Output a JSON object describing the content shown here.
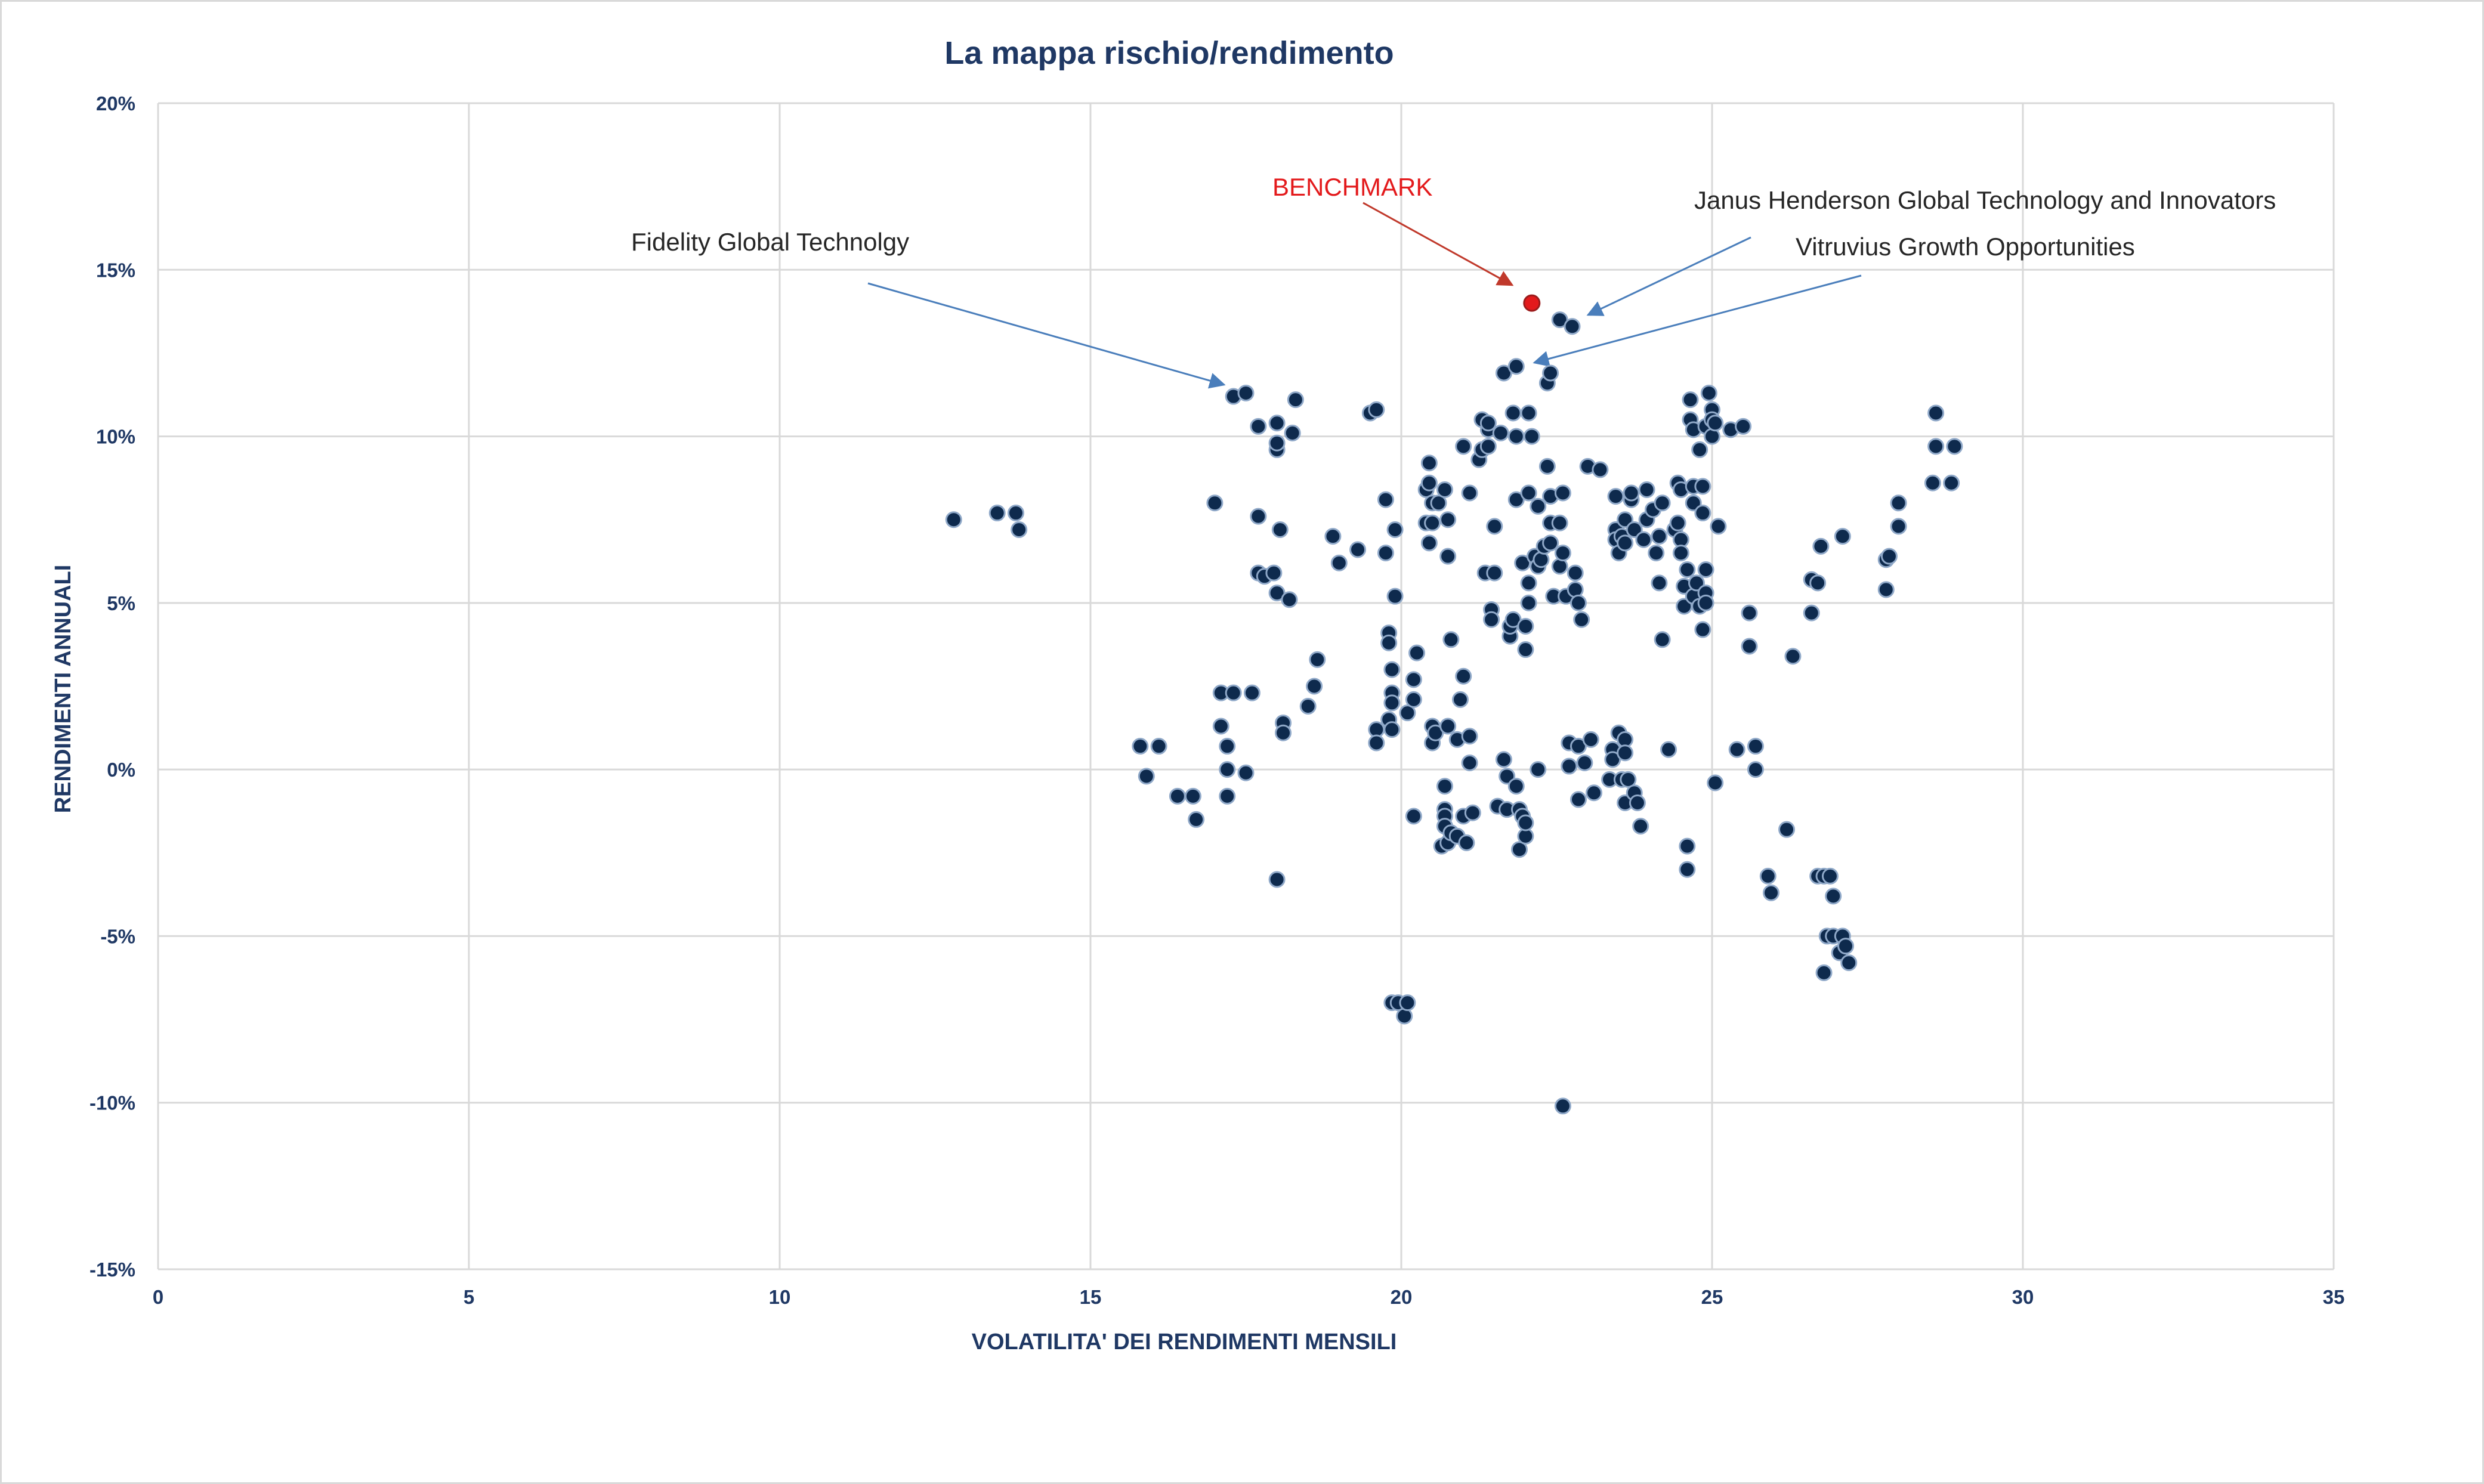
{
  "chart_data": {
    "type": "scatter",
    "title": "La mappa rischio/rendimento",
    "xlabel": "VOLATILITA' DEI RENDIMENTI MENSILI",
    "ylabel": "RENDIMENTI ANNUALI",
    "xlim": [
      0,
      35
    ],
    "ylim": [
      -15,
      20
    ],
    "x_ticks": [
      0,
      5,
      10,
      15,
      20,
      25,
      30,
      35
    ],
    "y_ticks": [
      20,
      15,
      10,
      5,
      0,
      -5,
      -10,
      -15
    ],
    "x_tick_labels": [
      "0",
      "5",
      "10",
      "15",
      "20",
      "25",
      "30",
      "35"
    ],
    "y_tick_labels": [
      "20%",
      "15%",
      "10%",
      "5%",
      "0%",
      "-5%",
      "-10%",
      "-15%"
    ],
    "grid": true,
    "legend": "none",
    "colors": {
      "fund": "#0e2a4d",
      "fund_edge": "#8fa8c8",
      "benchmark": "#e31a1c",
      "arrow_blue": "#4a7ebb",
      "arrow_red": "#c0392b",
      "grid": "#d9d9d9"
    },
    "annotations": [
      {
        "text": "Fidelity Global Technolgy",
        "point": [
          17.5,
          11.3
        ]
      },
      {
        "text": "BENCHMARK",
        "point": [
          22.1,
          14.0
        ],
        "color": "#e31a1c"
      },
      {
        "text": "Janus Henderson Global Technology and Innovators",
        "point": [
          22.8,
          13.4
        ]
      },
      {
        "text": "Vitruvius Growth Opportunities",
        "point": [
          22.2,
          11.9
        ]
      }
    ],
    "series": [
      {
        "name": "BENCHMARK",
        "points": [
          [
            22.1,
            14.0
          ]
        ]
      },
      {
        "points": [
          [
            12.8,
            7.5
          ],
          [
            13.5,
            7.7
          ],
          [
            13.8,
            7.7
          ],
          [
            13.85,
            7.2
          ],
          [
            15.8,
            0.7
          ],
          [
            15.9,
            -0.2
          ],
          [
            16.1,
            0.7
          ],
          [
            16.4,
            -0.8
          ],
          [
            16.65,
            -0.8
          ],
          [
            16.7,
            -1.5
          ],
          [
            17.0,
            8.0
          ],
          [
            17.1,
            2.3
          ],
          [
            17.1,
            1.3
          ],
          [
            17.2,
            0.7
          ],
          [
            17.2,
            0.0
          ],
          [
            17.2,
            -0.8
          ],
          [
            17.3,
            2.3
          ],
          [
            17.3,
            11.2
          ],
          [
            17.5,
            11.3
          ],
          [
            17.5,
            -0.1
          ],
          [
            17.6,
            2.3
          ],
          [
            17.7,
            10.3
          ],
          [
            17.7,
            7.6
          ],
          [
            17.7,
            5.9
          ],
          [
            17.8,
            5.8
          ],
          [
            17.95,
            5.9
          ],
          [
            18.0,
            10.4
          ],
          [
            18.0,
            9.6
          ],
          [
            18.0,
            9.8
          ],
          [
            18.0,
            5.3
          ],
          [
            18.05,
            7.2
          ],
          [
            18.0,
            -3.3
          ],
          [
            18.1,
            1.4
          ],
          [
            18.1,
            1.1
          ],
          [
            18.2,
            5.1
          ],
          [
            18.25,
            10.1
          ],
          [
            18.3,
            11.1
          ],
          [
            18.5,
            1.9
          ],
          [
            18.6,
            2.5
          ],
          [
            18.65,
            3.3
          ],
          [
            18.9,
            7.0
          ],
          [
            19.0,
            6.2
          ],
          [
            19.3,
            6.6
          ],
          [
            19.5,
            10.7
          ],
          [
            19.6,
            10.8
          ],
          [
            19.6,
            1.2
          ],
          [
            19.6,
            0.8
          ],
          [
            19.75,
            8.1
          ],
          [
            19.75,
            6.5
          ],
          [
            19.8,
            4.1
          ],
          [
            19.8,
            3.8
          ],
          [
            19.85,
            3.0
          ],
          [
            19.85,
            2.3
          ],
          [
            19.85,
            2.0
          ],
          [
            19.8,
            1.5
          ],
          [
            19.85,
            1.2
          ],
          [
            19.9,
            7.2
          ],
          [
            19.9,
            5.2
          ],
          [
            19.85,
            -7.0
          ],
          [
            19.95,
            -7.0
          ],
          [
            20.05,
            -7.4
          ],
          [
            20.1,
            -7.0
          ],
          [
            20.1,
            1.7
          ],
          [
            20.2,
            2.7
          ],
          [
            20.2,
            2.1
          ],
          [
            20.25,
            3.5
          ],
          [
            20.2,
            -1.4
          ],
          [
            20.4,
            8.4
          ],
          [
            20.4,
            7.4
          ],
          [
            20.45,
            9.2
          ],
          [
            20.45,
            8.6
          ],
          [
            20.5,
            8.0
          ],
          [
            20.45,
            6.8
          ],
          [
            20.5,
            7.4
          ],
          [
            20.5,
            1.3
          ],
          [
            20.5,
            0.8
          ],
          [
            20.6,
            8.0
          ],
          [
            20.55,
            1.1
          ],
          [
            20.7,
            8.4
          ],
          [
            20.75,
            7.5
          ],
          [
            20.75,
            6.4
          ],
          [
            20.8,
            3.9
          ],
          [
            20.75,
            1.3
          ],
          [
            20.7,
            -0.5
          ],
          [
            20.7,
            -1.2
          ],
          [
            20.7,
            -1.4
          ],
          [
            20.7,
            -1.7
          ],
          [
            20.65,
            -2.3
          ],
          [
            20.75,
            -2.2
          ],
          [
            20.8,
            -1.9
          ],
          [
            20.9,
            0.9
          ],
          [
            20.9,
            -2.0
          ],
          [
            20.95,
            2.1
          ],
          [
            21.0,
            2.8
          ],
          [
            21.0,
            9.7
          ],
          [
            21.05,
            -2.2
          ],
          [
            21.0,
            -1.4
          ],
          [
            21.1,
            8.3
          ],
          [
            21.1,
            1.0
          ],
          [
            21.1,
            0.2
          ],
          [
            21.15,
            -1.3
          ],
          [
            21.25,
            9.3
          ],
          [
            21.3,
            10.5
          ],
          [
            21.3,
            9.6
          ],
          [
            21.35,
            5.9
          ],
          [
            21.4,
            10.2
          ],
          [
            21.4,
            9.7
          ],
          [
            21.4,
            10.4
          ],
          [
            21.45,
            4.8
          ],
          [
            21.45,
            4.5
          ],
          [
            21.5,
            7.3
          ],
          [
            21.5,
            5.9
          ],
          [
            21.55,
            -1.1
          ],
          [
            21.65,
            11.9
          ],
          [
            21.6,
            10.1
          ],
          [
            21.65,
            0.3
          ],
          [
            21.7,
            -0.2
          ],
          [
            21.7,
            -1.2
          ],
          [
            21.75,
            4.0
          ],
          [
            21.75,
            4.3
          ],
          [
            21.8,
            10.7
          ],
          [
            21.85,
            10.0
          ],
          [
            21.8,
            4.5
          ],
          [
            21.85,
            12.1
          ],
          [
            21.85,
            8.1
          ],
          [
            21.85,
            -0.5
          ],
          [
            21.9,
            -1.2
          ],
          [
            21.9,
            -2.4
          ],
          [
            21.95,
            6.2
          ],
          [
            21.95,
            -1.4
          ],
          [
            22.0,
            4.3
          ],
          [
            22.0,
            3.6
          ],
          [
            22.0,
            -2.0
          ],
          [
            22.0,
            -1.6
          ],
          [
            22.05,
            10.7
          ],
          [
            22.05,
            8.3
          ],
          [
            22.05,
            5.0
          ],
          [
            22.05,
            5.6
          ],
          [
            22.1,
            10.0
          ],
          [
            22.15,
            6.4
          ],
          [
            22.2,
            6.1
          ],
          [
            22.2,
            0.0
          ],
          [
            22.2,
            7.9
          ],
          [
            22.25,
            6.3
          ],
          [
            22.3,
            6.7
          ],
          [
            22.35,
            11.6
          ],
          [
            22.4,
            11.9
          ],
          [
            22.35,
            9.1
          ],
          [
            22.4,
            8.2
          ],
          [
            22.4,
            7.4
          ],
          [
            22.4,
            6.8
          ],
          [
            22.45,
            5.2
          ],
          [
            22.55,
            7.4
          ],
          [
            22.55,
            6.1
          ],
          [
            22.6,
            8.3
          ],
          [
            22.6,
            6.5
          ],
          [
            22.65,
            5.2
          ],
          [
            22.55,
            13.5
          ],
          [
            22.75,
            13.3
          ],
          [
            22.6,
            -10.1
          ],
          [
            22.7,
            0.8
          ],
          [
            22.7,
            0.1
          ],
          [
            22.8,
            5.9
          ],
          [
            22.8,
            5.4
          ],
          [
            22.85,
            5.0
          ],
          [
            22.85,
            0.7
          ],
          [
            22.85,
            -0.9
          ],
          [
            22.9,
            4.5
          ],
          [
            22.95,
            0.2
          ],
          [
            23.0,
            9.1
          ],
          [
            23.05,
            0.9
          ],
          [
            23.1,
            -0.7
          ],
          [
            23.2,
            9.0
          ],
          [
            23.35,
            -0.3
          ],
          [
            23.4,
            0.6
          ],
          [
            23.4,
            0.3
          ],
          [
            23.45,
            8.2
          ],
          [
            23.45,
            7.2
          ],
          [
            23.45,
            6.9
          ],
          [
            23.5,
            6.5
          ],
          [
            23.5,
            1.1
          ],
          [
            23.55,
            7.0
          ],
          [
            23.55,
            -0.3
          ],
          [
            23.6,
            7.5
          ],
          [
            23.6,
            6.8
          ],
          [
            23.6,
            0.9
          ],
          [
            23.6,
            0.5
          ],
          [
            23.6,
            -1.0
          ],
          [
            23.65,
            -0.3
          ],
          [
            23.7,
            8.1
          ],
          [
            23.7,
            8.3
          ],
          [
            23.75,
            7.2
          ],
          [
            23.75,
            -0.7
          ],
          [
            23.8,
            -1.0
          ],
          [
            23.85,
            -1.7
          ],
          [
            23.9,
            6.9
          ],
          [
            23.95,
            8.4
          ],
          [
            23.95,
            7.5
          ],
          [
            24.05,
            7.8
          ],
          [
            24.1,
            6.5
          ],
          [
            24.15,
            7.0
          ],
          [
            24.15,
            5.6
          ],
          [
            24.2,
            8.0
          ],
          [
            24.2,
            3.9
          ],
          [
            24.3,
            0.6
          ],
          [
            24.4,
            7.2
          ],
          [
            24.45,
            8.6
          ],
          [
            24.45,
            7.4
          ],
          [
            24.5,
            8.4
          ],
          [
            24.5,
            6.9
          ],
          [
            24.5,
            6.5
          ],
          [
            24.55,
            5.5
          ],
          [
            24.55,
            4.9
          ],
          [
            24.6,
            6.0
          ],
          [
            24.6,
            -2.3
          ],
          [
            24.6,
            -3.0
          ],
          [
            24.65,
            11.1
          ],
          [
            24.65,
            10.5
          ],
          [
            24.7,
            10.2
          ],
          [
            24.7,
            8.5
          ],
          [
            24.7,
            8.0
          ],
          [
            24.7,
            5.2
          ],
          [
            24.75,
            5.6
          ],
          [
            24.8,
            4.9
          ],
          [
            24.8,
            9.6
          ],
          [
            24.85,
            8.5
          ],
          [
            24.85,
            7.7
          ],
          [
            24.9,
            10.3
          ],
          [
            24.9,
            6.0
          ],
          [
            24.9,
            5.3
          ],
          [
            24.9,
            5.0
          ],
          [
            24.85,
            4.2
          ],
          [
            24.95,
            11.3
          ],
          [
            25.0,
            10.8
          ],
          [
            25.0,
            10.5
          ],
          [
            25.0,
            10.0
          ],
          [
            25.05,
            10.4
          ],
          [
            25.05,
            -0.4
          ],
          [
            25.1,
            7.3
          ],
          [
            25.3,
            10.2
          ],
          [
            25.4,
            0.6
          ],
          [
            25.5,
            10.3
          ],
          [
            25.6,
            4.7
          ],
          [
            25.6,
            3.7
          ],
          [
            25.7,
            0.7
          ],
          [
            25.7,
            0.0
          ],
          [
            25.9,
            -3.2
          ],
          [
            25.95,
            -3.7
          ],
          [
            26.2,
            -1.8
          ],
          [
            26.3,
            3.4
          ],
          [
            26.6,
            5.7
          ],
          [
            26.6,
            4.7
          ],
          [
            26.7,
            5.6
          ],
          [
            26.75,
            6.7
          ],
          [
            26.7,
            -3.2
          ],
          [
            26.8,
            -3.2
          ],
          [
            26.8,
            -6.1
          ],
          [
            26.85,
            -5.0
          ],
          [
            26.9,
            -3.2
          ],
          [
            26.95,
            -3.8
          ],
          [
            26.95,
            -5.0
          ],
          [
            27.05,
            -5.5
          ],
          [
            27.1,
            -5.0
          ],
          [
            27.15,
            -5.3
          ],
          [
            27.2,
            -5.8
          ],
          [
            27.1,
            7.0
          ],
          [
            27.8,
            6.3
          ],
          [
            27.8,
            5.4
          ],
          [
            27.85,
            6.4
          ],
          [
            28.0,
            8.0
          ],
          [
            28.0,
            7.3
          ],
          [
            28.55,
            8.6
          ],
          [
            28.6,
            9.7
          ],
          [
            28.6,
            10.7
          ],
          [
            28.85,
            8.6
          ],
          [
            28.9,
            9.7
          ]
        ]
      }
    ]
  }
}
